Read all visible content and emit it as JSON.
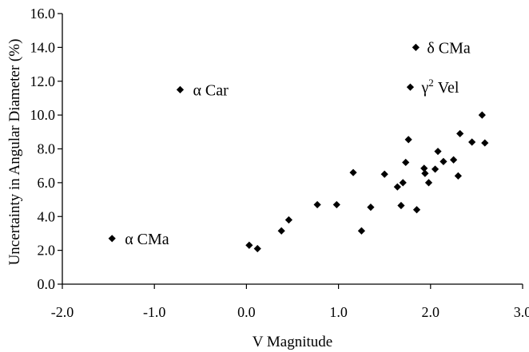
{
  "chart_data": {
    "type": "scatter",
    "title": "",
    "xlabel": "V Magnitude",
    "ylabel": "Uncertainty in Angular Diameter (%)",
    "xlim": [
      -2.0,
      3.0
    ],
    "ylim": [
      0.0,
      16.0
    ],
    "x_ticks": [
      -2.0,
      -1.0,
      0.0,
      1.0,
      2.0,
      3.0
    ],
    "y_ticks": [
      0.0,
      2.0,
      4.0,
      6.0,
      8.0,
      10.0,
      12.0,
      14.0,
      16.0
    ],
    "x_tick_labels": [
      "-2.0",
      "-1.0",
      "0.0",
      "1.0",
      "2.0",
      "3.0"
    ],
    "y_tick_labels": [
      "0.0",
      "2.0",
      "4.0",
      "6.0",
      "8.0",
      "10.0",
      "12.0",
      "14.0",
      "16.0"
    ],
    "grid": false,
    "marker": "diamond",
    "marker_color": "#000000",
    "series": [
      {
        "points": [
          [
            -1.46,
            2.7
          ],
          [
            -0.72,
            11.5
          ],
          [
            0.03,
            2.3
          ],
          [
            0.12,
            2.1
          ],
          [
            0.38,
            3.15
          ],
          [
            0.46,
            3.8
          ],
          [
            0.77,
            4.7
          ],
          [
            0.98,
            4.7
          ],
          [
            1.16,
            6.6
          ],
          [
            1.25,
            3.15
          ],
          [
            1.35,
            4.55
          ],
          [
            1.5,
            6.5
          ],
          [
            1.64,
            5.75
          ],
          [
            1.68,
            4.65
          ],
          [
            1.7,
            6.0
          ],
          [
            1.73,
            7.2
          ],
          [
            1.76,
            8.55
          ],
          [
            1.78,
            11.65
          ],
          [
            1.84,
            14.0
          ],
          [
            1.85,
            4.4
          ],
          [
            1.93,
            6.85
          ],
          [
            1.94,
            6.55
          ],
          [
            1.98,
            6.0
          ],
          [
            2.05,
            6.8
          ],
          [
            2.08,
            7.85
          ],
          [
            2.14,
            7.25
          ],
          [
            2.25,
            7.35
          ],
          [
            2.3,
            6.4
          ],
          [
            2.32,
            8.9
          ],
          [
            2.45,
            8.4
          ],
          [
            2.56,
            10.0
          ],
          [
            2.59,
            8.35
          ]
        ]
      }
    ],
    "annotations": [
      {
        "prefix": "α",
        "text": "α CMa",
        "x": -1.46,
        "y": 2.7
      },
      {
        "prefix": "α",
        "text": "α Car",
        "x": -0.72,
        "y": 11.5
      },
      {
        "prefix": "δ",
        "text": "δ CMa",
        "x": 1.84,
        "y": 14.0
      },
      {
        "prefix": "γ",
        "sup": "2",
        "name": "Vel",
        "text": "γ2 Vel",
        "x": 1.78,
        "y": 11.65
      }
    ]
  }
}
